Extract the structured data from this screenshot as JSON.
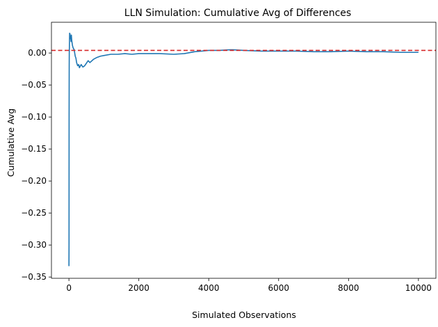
{
  "chart_data": {
    "type": "line",
    "title": "LLN Simulation: Cumulative Avg of Differences",
    "xlabel": "Simulated Observations",
    "ylabel": "Cumulative Avg",
    "xlim": [
      -500,
      10500
    ],
    "ylim": [
      -0.352,
      0.048
    ],
    "xticks": [
      0,
      2000,
      4000,
      6000,
      8000,
      10000
    ],
    "xtick_labels": [
      "0",
      "2000",
      "4000",
      "6000",
      "8000",
      "10000"
    ],
    "yticks": [
      -0.35,
      -0.3,
      -0.25,
      -0.2,
      -0.15,
      -0.1,
      -0.05,
      0.0
    ],
    "ytick_labels": [
      "−0.35",
      "−0.30",
      "−0.25",
      "−0.20",
      "−0.15",
      "−0.10",
      "−0.05",
      "0.00"
    ],
    "grid": false,
    "reference_line": {
      "y": 0.004,
      "style": "dashed",
      "color": "#d62728"
    },
    "series": [
      {
        "color": "#1f77b4",
        "x": [
          1,
          3,
          5,
          8,
          10,
          15,
          20,
          25,
          30,
          40,
          50,
          60,
          70,
          80,
          100,
          120,
          150,
          180,
          200,
          220,
          250,
          280,
          300,
          350,
          400,
          450,
          500,
          550,
          600,
          700,
          800,
          900,
          1000,
          1200,
          1400,
          1600,
          1800,
          2000,
          2300,
          2600,
          3000,
          3300,
          3600,
          3800,
          4000,
          4300,
          4600,
          4700,
          5000,
          5500,
          6000,
          6500,
          7000,
          7500,
          8000,
          8500,
          9000,
          9500,
          10000
        ],
        "y": [
          -0.333,
          -0.3,
          -0.1,
          -0.02,
          0.0,
          0.015,
          0.031,
          0.022,
          0.03,
          0.025,
          0.026,
          0.018,
          0.028,
          0.02,
          0.012,
          0.008,
          0.005,
          -0.005,
          -0.008,
          -0.015,
          -0.02,
          -0.018,
          -0.023,
          -0.018,
          -0.022,
          -0.02,
          -0.016,
          -0.012,
          -0.015,
          -0.01,
          -0.007,
          -0.005,
          -0.004,
          -0.002,
          -0.002,
          -0.001,
          -0.002,
          -0.001,
          -0.001,
          -0.001,
          -0.002,
          -0.001,
          0.002,
          0.003,
          0.004,
          0.004,
          0.005,
          0.005,
          0.004,
          0.003,
          0.003,
          0.003,
          0.002,
          0.002,
          0.003,
          0.002,
          0.002,
          0.001,
          0.001
        ]
      }
    ]
  }
}
